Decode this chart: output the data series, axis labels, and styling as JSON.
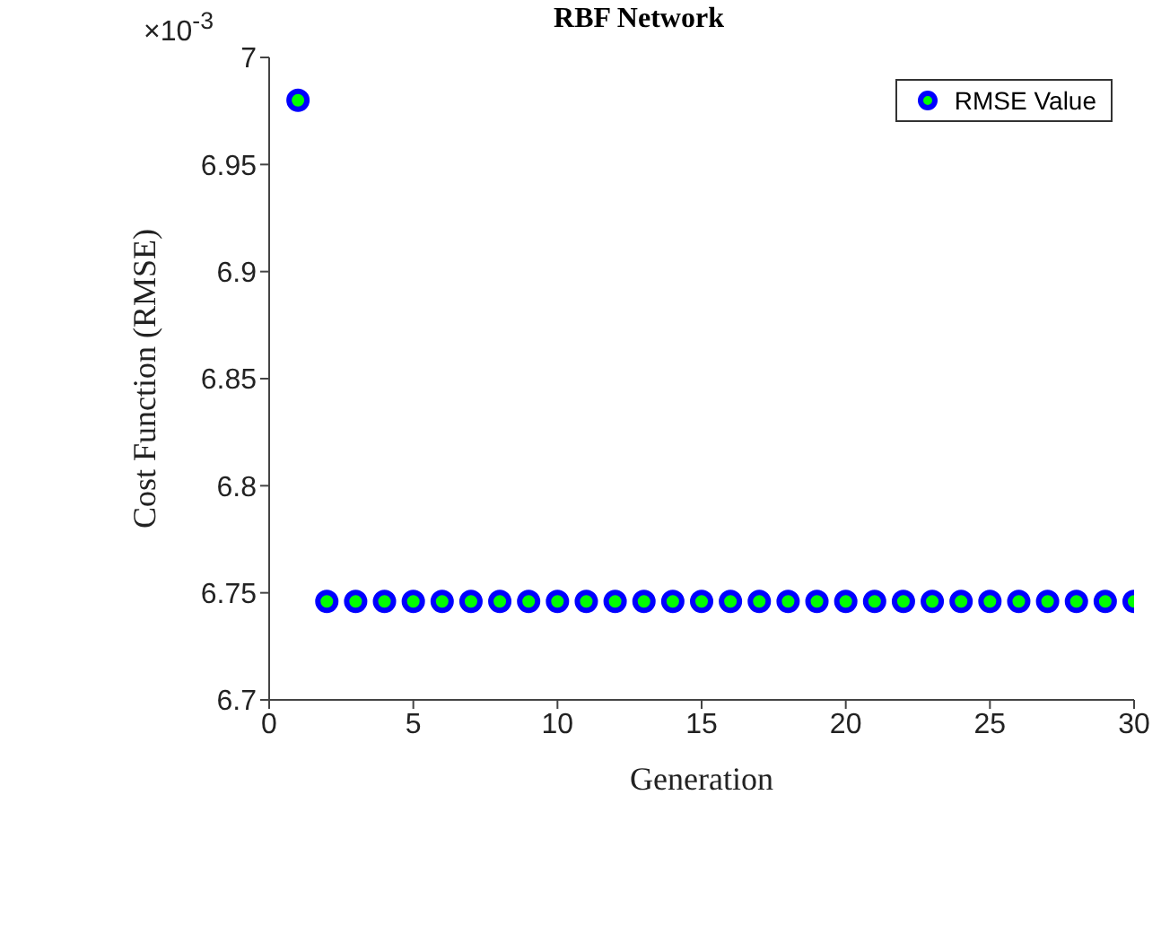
{
  "chart_data": {
    "type": "scatter",
    "title": "RBF Network",
    "xlabel": "Generation",
    "ylabel": "Cost Function (RMSE)",
    "annotations": [
      "×10$^{-3}$"
    ],
    "x": [
      1,
      2,
      3,
      4,
      5,
      6,
      7,
      8,
      9,
      10,
      11,
      12,
      13,
      14,
      15,
      16,
      17,
      18,
      19,
      20,
      21,
      22,
      23,
      24,
      25,
      26,
      27,
      28,
      29,
      30
    ],
    "series": [
      {
        "name": "RMSE Value",
        "color": "#0000ff",
        "values": [
          6.98,
          6.746,
          6.746,
          6.746,
          6.746,
          6.746,
          6.746,
          6.746,
          6.746,
          6.746,
          6.746,
          6.746,
          6.746,
          6.746,
          6.746,
          6.746,
          6.746,
          6.746,
          6.746,
          6.746,
          6.746,
          6.746,
          6.746,
          6.746,
          6.746,
          6.746,
          6.746,
          6.746,
          6.746,
          6.746
        ]
      }
    ],
    "xlim": [
      0,
      30
    ],
    "xticks": [
      0,
      5,
      10,
      15,
      20,
      25,
      30
    ],
    "ylim": [
      6.7,
      7
    ],
    "yticks": [
      6.7,
      6.75,
      6.8,
      6.85,
      6.9,
      6.95,
      7
    ],
    "grid": false,
    "legend": "top right",
    "marker": "circle"
  }
}
